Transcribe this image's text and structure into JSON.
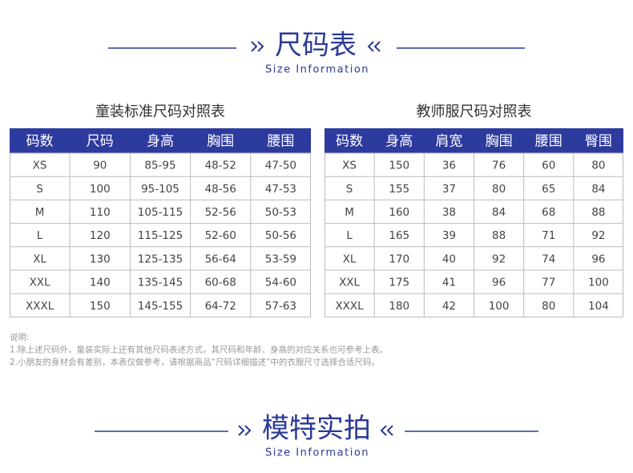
{
  "header": {
    "title": "尺码表",
    "subtitle": "Size Information"
  },
  "tables": [
    {
      "title": "童装标准尺码对照表",
      "columns": [
        "码数",
        "尺码",
        "身高",
        "胸围",
        "腰围"
      ],
      "rows": [
        [
          "XS",
          "90",
          "85-95",
          "48-52",
          "47-50"
        ],
        [
          "S",
          "100",
          "95-105",
          "48-56",
          "47-53"
        ],
        [
          "M",
          "110",
          "105-115",
          "52-56",
          "50-53"
        ],
        [
          "L",
          "120",
          "115-125",
          "52-60",
          "50-56"
        ],
        [
          "XL",
          "130",
          "125-135",
          "56-64",
          "53-59"
        ],
        [
          "XXL",
          "140",
          "135-145",
          "60-68",
          "54-60"
        ],
        [
          "XXXL",
          "150",
          "145-155",
          "64-72",
          "57-63"
        ]
      ]
    },
    {
      "title": "教师服尺码对照表",
      "columns": [
        "码数",
        "身高",
        "肩宽",
        "胸围",
        "腰围",
        "臀围"
      ],
      "rows": [
        [
          "XS",
          "150",
          "36",
          "76",
          "60",
          "80"
        ],
        [
          "S",
          "155",
          "37",
          "80",
          "65",
          "84"
        ],
        [
          "M",
          "160",
          "38",
          "84",
          "68",
          "88"
        ],
        [
          "L",
          "165",
          "39",
          "88",
          "71",
          "92"
        ],
        [
          "XL",
          "170",
          "40",
          "92",
          "74",
          "96"
        ],
        [
          "XXL",
          "175",
          "41",
          "96",
          "77",
          "100"
        ],
        [
          "XXXL",
          "180",
          "42",
          "100",
          "80",
          "104"
        ]
      ]
    }
  ],
  "notes": [
    "说明:",
    "1.除上述尺码外，童装实际上还有其他尺码表述方式，其尺码和年龄、身高的对应关系也可参考上表。",
    "2.小朋友的身材会有差别，本表仅做参考，请根据商品“尺码详细描述”中的衣服尺寸选择合适尺码。"
  ],
  "footer": {
    "title": "模特实拍",
    "subtitle": "Size Information"
  }
}
